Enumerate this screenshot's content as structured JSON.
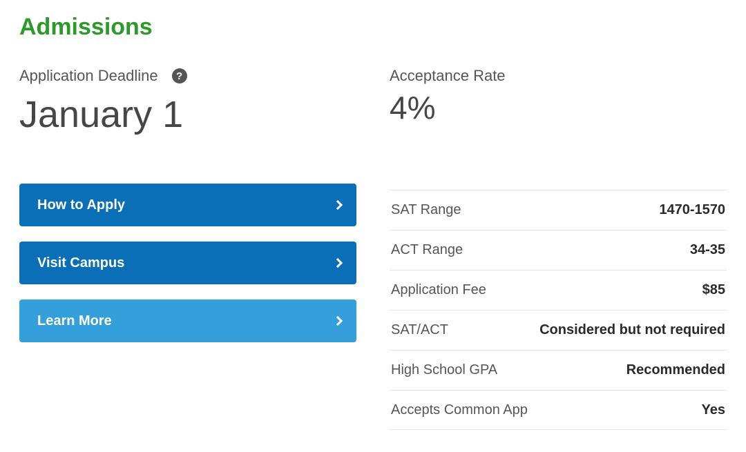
{
  "colors": {
    "accent_green": "#2a9b26",
    "button_primary": "#0b6fb8",
    "button_secondary": "#339fdb",
    "text_body": "#464646",
    "text_muted": "#555555",
    "divider": "#e5e5e5",
    "background": "#ffffff",
    "help_bg": "#555555",
    "help_fg": "#ffffff"
  },
  "section_title": "Admissions",
  "deadline": {
    "label": "Application Deadline",
    "value": "January 1",
    "help_glyph": "?"
  },
  "acceptance": {
    "label": "Acceptance Rate",
    "value": "4%"
  },
  "buttons": [
    {
      "label": "How to Apply",
      "style": "dark"
    },
    {
      "label": "Visit Campus",
      "style": "dark"
    },
    {
      "label": "Learn More",
      "style": "light"
    }
  ],
  "stats": [
    {
      "label": "SAT Range",
      "value": "1470-1570"
    },
    {
      "label": "ACT Range",
      "value": "34-35"
    },
    {
      "label": "Application Fee",
      "value": "$85"
    },
    {
      "label": "SAT/ACT",
      "value": "Considered but not required"
    },
    {
      "label": "High School GPA",
      "value": "Recommended"
    },
    {
      "label": "Accepts Common App",
      "value": "Yes"
    }
  ]
}
